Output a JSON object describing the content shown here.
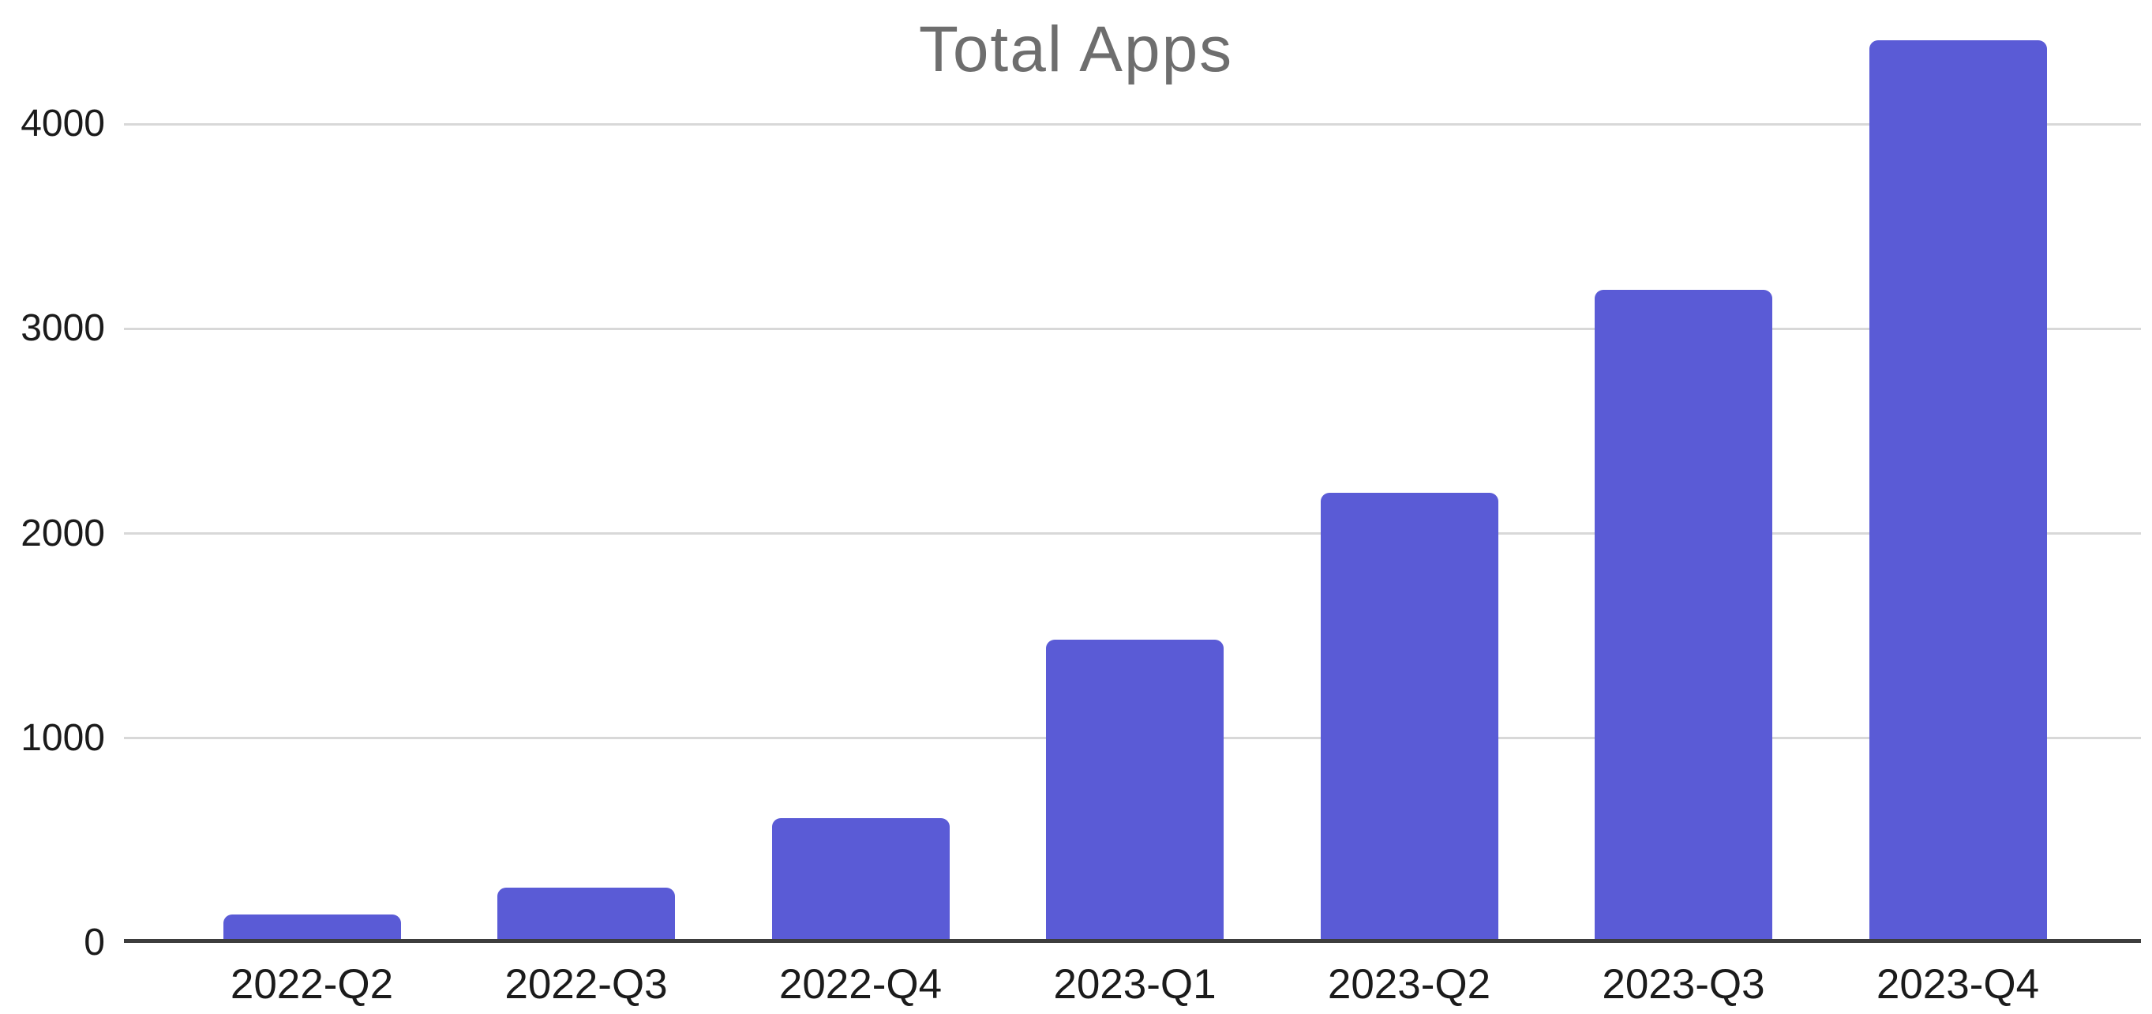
{
  "chart_data": {
    "type": "bar",
    "title": "Total Apps",
    "categories": [
      "2022-Q2",
      "2022-Q3",
      "2022-Q4",
      "2023-Q1",
      "2023-Q2",
      "2023-Q3",
      "2023-Q4"
    ],
    "values": [
      140,
      270,
      610,
      1480,
      2200,
      3190,
      4410
    ],
    "xlabel": "",
    "ylabel": "",
    "y_ticks": [
      0,
      1000,
      2000,
      3000,
      4000
    ],
    "ylim": [
      0,
      4600
    ],
    "grid": true,
    "legend_position": "none",
    "colors": {
      "bar": "#5A5BD6",
      "title": "#6E6E6E",
      "gridline": "#D8D8D8",
      "axis_line": "#3D3D3D",
      "tick_label": "#1B1B1B",
      "background": "#FFFFFF"
    }
  }
}
